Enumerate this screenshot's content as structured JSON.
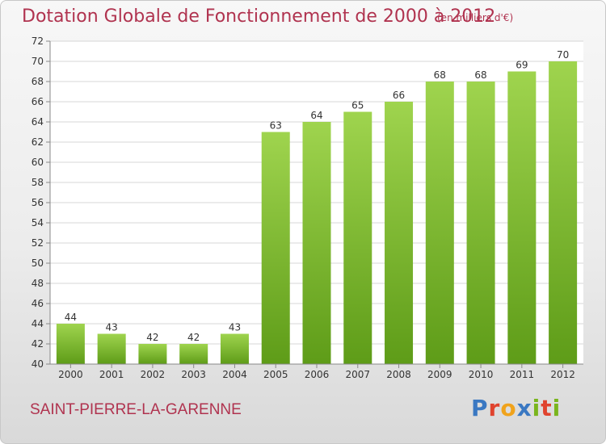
{
  "header": {
    "title": "Dotation Globale de Fonctionnement de 2000 à 2012",
    "subtitle": "(en milliers d'€)"
  },
  "footer": {
    "commune": "SAINT-PIERRE-LA-GARENNE",
    "logo_text": "Proxiti"
  },
  "colors": {
    "title": "#b0334f",
    "bar_top": "#9fd44e",
    "bar_bottom": "#5e9c18",
    "grid": "#d7d7d7"
  },
  "chart_data": {
    "type": "bar",
    "title": "Dotation Globale de Fonctionnement de 2000 à 2012",
    "subtitle": "(en milliers d'€)",
    "categories": [
      "2000",
      "2001",
      "2002",
      "2003",
      "2004",
      "2005",
      "2006",
      "2007",
      "2008",
      "2009",
      "2010",
      "2011",
      "2012"
    ],
    "values": [
      44,
      43,
      42,
      42,
      43,
      63,
      64,
      65,
      66,
      68,
      68,
      69,
      70
    ],
    "ylim": [
      40,
      72
    ],
    "yticks": [
      40,
      42,
      44,
      46,
      48,
      50,
      52,
      54,
      56,
      58,
      60,
      62,
      64,
      66,
      68,
      70,
      72
    ],
    "grid": true,
    "data_labels": true
  }
}
